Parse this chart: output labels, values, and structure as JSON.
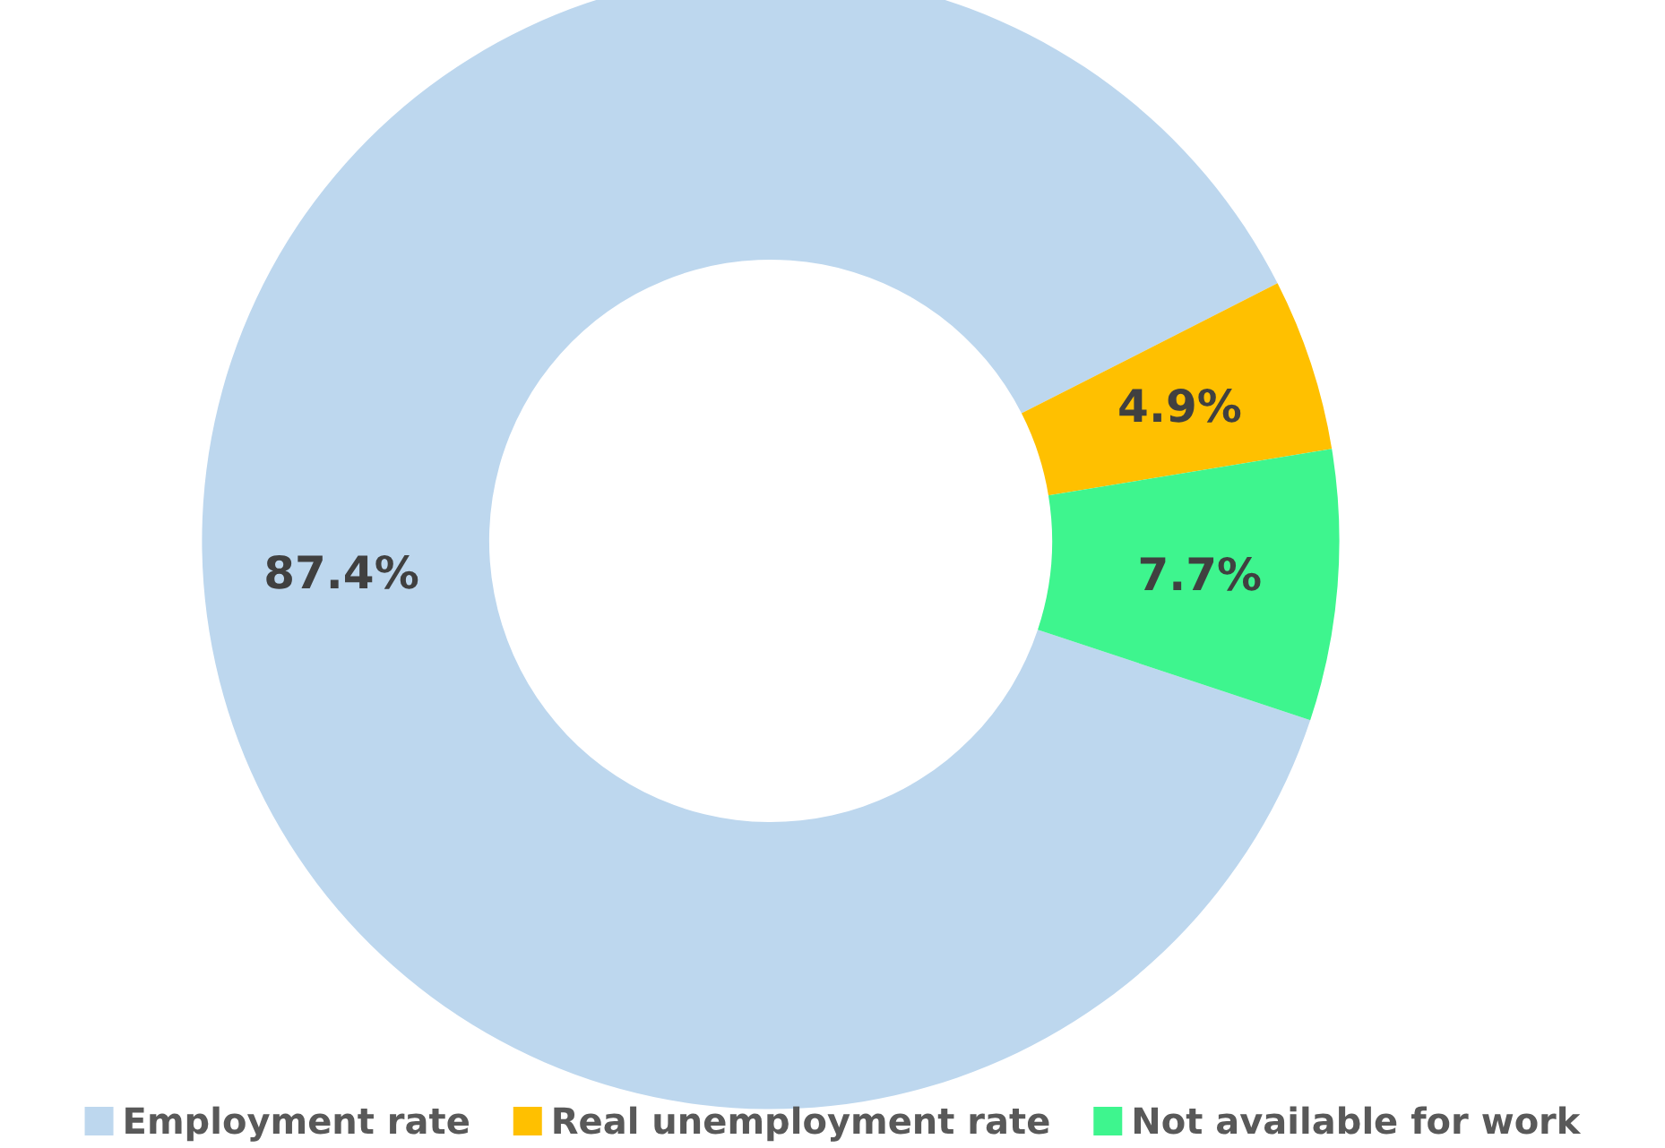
{
  "chart_data": {
    "type": "donut",
    "categories": [
      "Employment rate",
      "Real unemployment rate",
      "Not available for work"
    ],
    "values": [
      87.4,
      4.9,
      7.7
    ],
    "colors": [
      "#bdd7ee",
      "#ffc000",
      "#3ef58e"
    ],
    "value_labels": [
      "87.4%",
      "4.9%",
      "7.7%"
    ],
    "legend": "bottom"
  }
}
